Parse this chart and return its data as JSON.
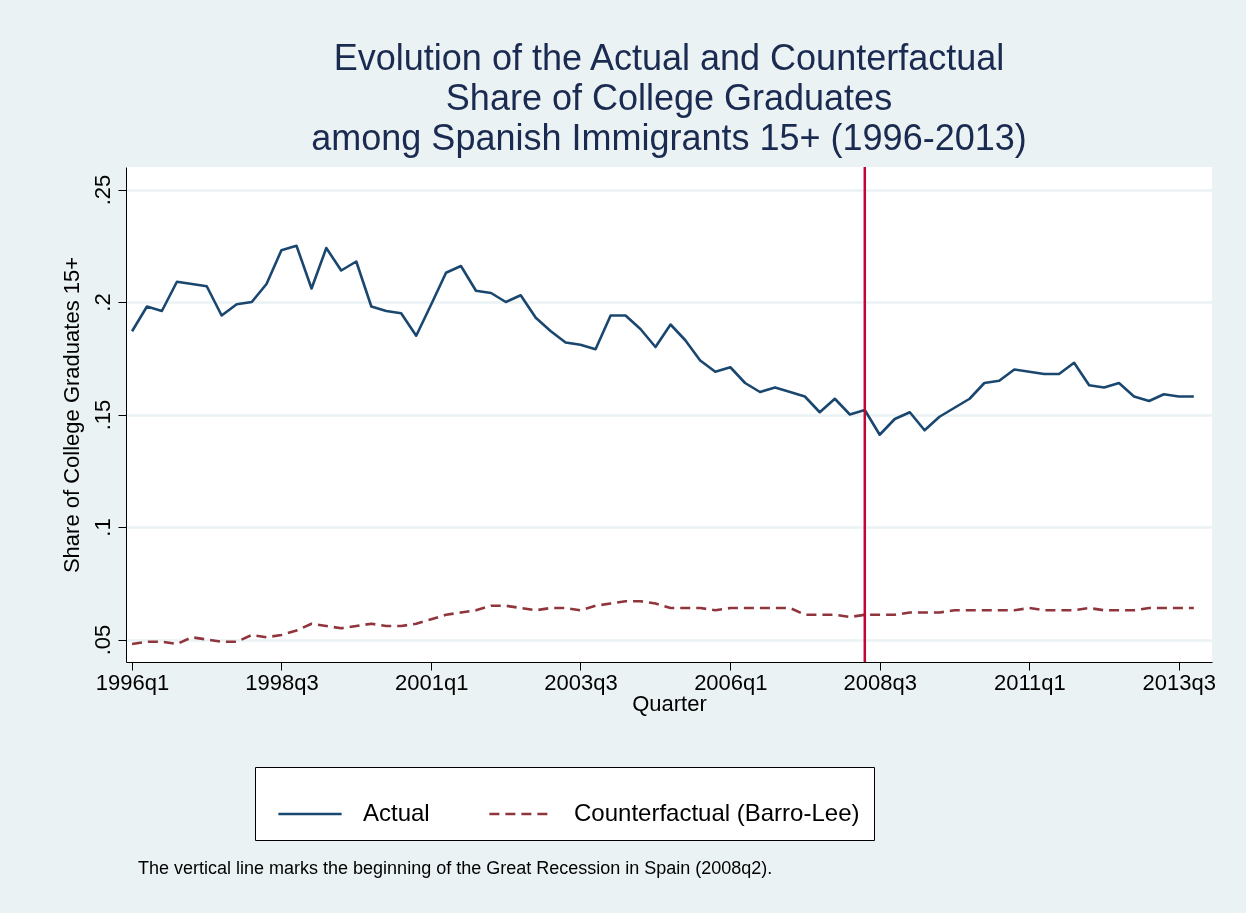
{
  "chart_data": {
    "type": "line",
    "title": "Evolution of the Actual and Counterfactual\nShare of College Graduates\namong Spanish Immigrants 15+ (1996-2013)",
    "xlabel": "Quarter",
    "ylabel": "Share of College Graduates 15+",
    "x": [
      "1996-01",
      "1996-04",
      "1996-07",
      "1996-10",
      "1997-01",
      "1997-04",
      "1997-07",
      "1997-10",
      "1998-01",
      "1998-04",
      "1998-07",
      "1998-10",
      "1999-01",
      "1999-04",
      "1999-07",
      "1999-10",
      "2000-01",
      "2000-04",
      "2000-07",
      "2000-10",
      "2001-01",
      "2001-04",
      "2001-07",
      "2001-10",
      "2002-01",
      "2002-04",
      "2002-07",
      "2002-10",
      "2003-01",
      "2003-04",
      "2003-07",
      "2003-10",
      "2004-01",
      "2004-04",
      "2004-07",
      "2004-10",
      "2005-01",
      "2005-04",
      "2005-07",
      "2005-10",
      "2006-01",
      "2006-04",
      "2006-07",
      "2006-10",
      "2007-01",
      "2007-04",
      "2007-07",
      "2007-10",
      "2008-01",
      "2008-04",
      "2008-07",
      "2008-10",
      "2009-01",
      "2009-04",
      "2009-07",
      "2009-10",
      "2010-01",
      "2010-04",
      "2010-07",
      "2010-10",
      "2011-01",
      "2011-04",
      "2011-07",
      "2011-10",
      "2012-01",
      "2012-04",
      "2012-07",
      "2012-10",
      "2013-01",
      "2013-04",
      "2013-07",
      "2013-10"
    ],
    "series": [
      {
        "name": "Actual",
        "color": "#1a476f",
        "line_style": "solid",
        "values": [
          0.187,
          0.198,
          0.196,
          0.209,
          0.208,
          0.207,
          0.194,
          0.199,
          0.2,
          0.208,
          0.223,
          0.225,
          0.206,
          0.224,
          0.214,
          0.218,
          0.198,
          0.196,
          0.195,
          0.185,
          0.199,
          0.213,
          0.216,
          0.205,
          0.204,
          0.2,
          0.203,
          0.193,
          0.187,
          0.182,
          0.181,
          0.179,
          0.194,
          0.194,
          0.188,
          0.18,
          0.19,
          0.183,
          0.174,
          0.169,
          0.171,
          0.164,
          0.16,
          0.162,
          0.16,
          0.158,
          0.151,
          0.157,
          0.15,
          0.152,
          0.141,
          0.148,
          0.151,
          0.143,
          0.149,
          0.153,
          0.157,
          0.164,
          0.165,
          0.17,
          0.169,
          0.168,
          0.168,
          0.173,
          0.163,
          0.162,
          0.164,
          0.158,
          0.156,
          0.159,
          0.158,
          0.158
        ]
      },
      {
        "name": "Counterfactual (Barro-Lee)",
        "color": "#90353b",
        "line_style": "dashed",
        "values": [
          0.048,
          0.049,
          0.049,
          0.048,
          0.051,
          0.05,
          0.049,
          0.049,
          0.052,
          0.051,
          0.052,
          0.054,
          0.057,
          0.056,
          0.055,
          0.056,
          0.057,
          0.056,
          0.056,
          0.057,
          0.059,
          0.061,
          0.062,
          0.063,
          0.065,
          0.065,
          0.064,
          0.063,
          0.064,
          0.064,
          0.063,
          0.065,
          0.066,
          0.067,
          0.067,
          0.066,
          0.064,
          0.064,
          0.064,
          0.063,
          0.064,
          0.064,
          0.064,
          0.064,
          0.064,
          0.061,
          0.061,
          0.061,
          0.06,
          0.061,
          0.061,
          0.061,
          0.062,
          0.062,
          0.062,
          0.063,
          0.063,
          0.063,
          0.063,
          0.063,
          0.064,
          0.063,
          0.063,
          0.063,
          0.064,
          0.063,
          0.063,
          0.063,
          0.064,
          0.064,
          0.064,
          0.064
        ]
      }
    ],
    "xlim": [
      "1995-11-25",
      "2014-01-20"
    ],
    "xticks": [
      {
        "value": "1996-01",
        "label": "1996q1"
      },
      {
        "value": "1998-07",
        "label": "1998q3"
      },
      {
        "value": "2001-01",
        "label": "2001q1"
      },
      {
        "value": "2003-07",
        "label": "2003q3"
      },
      {
        "value": "2006-01",
        "label": "2006q1"
      },
      {
        "value": "2008-07",
        "label": "2008q3"
      },
      {
        "value": "2011-01",
        "label": "2011q1"
      },
      {
        "value": "2013-07",
        "label": "2013q3"
      }
    ],
    "ylim": [
      0.04,
      0.26
    ],
    "yticks": [
      {
        "value": 0.05,
        "label": ".05"
      },
      {
        "value": 0.1,
        "label": ".1"
      },
      {
        "value": 0.15,
        "label": ".15"
      },
      {
        "value": 0.2,
        "label": ".2"
      },
      {
        "value": 0.25,
        "label": ".25"
      }
    ],
    "ref_lines": [
      {
        "axis": "x",
        "value": "2008-04",
        "color": "#c10534"
      }
    ],
    "grid": "y",
    "legend": "bottom",
    "annotations": [
      "The vertical line marks the beginning of the Great Recession in Spain (2008q2)."
    ]
  }
}
